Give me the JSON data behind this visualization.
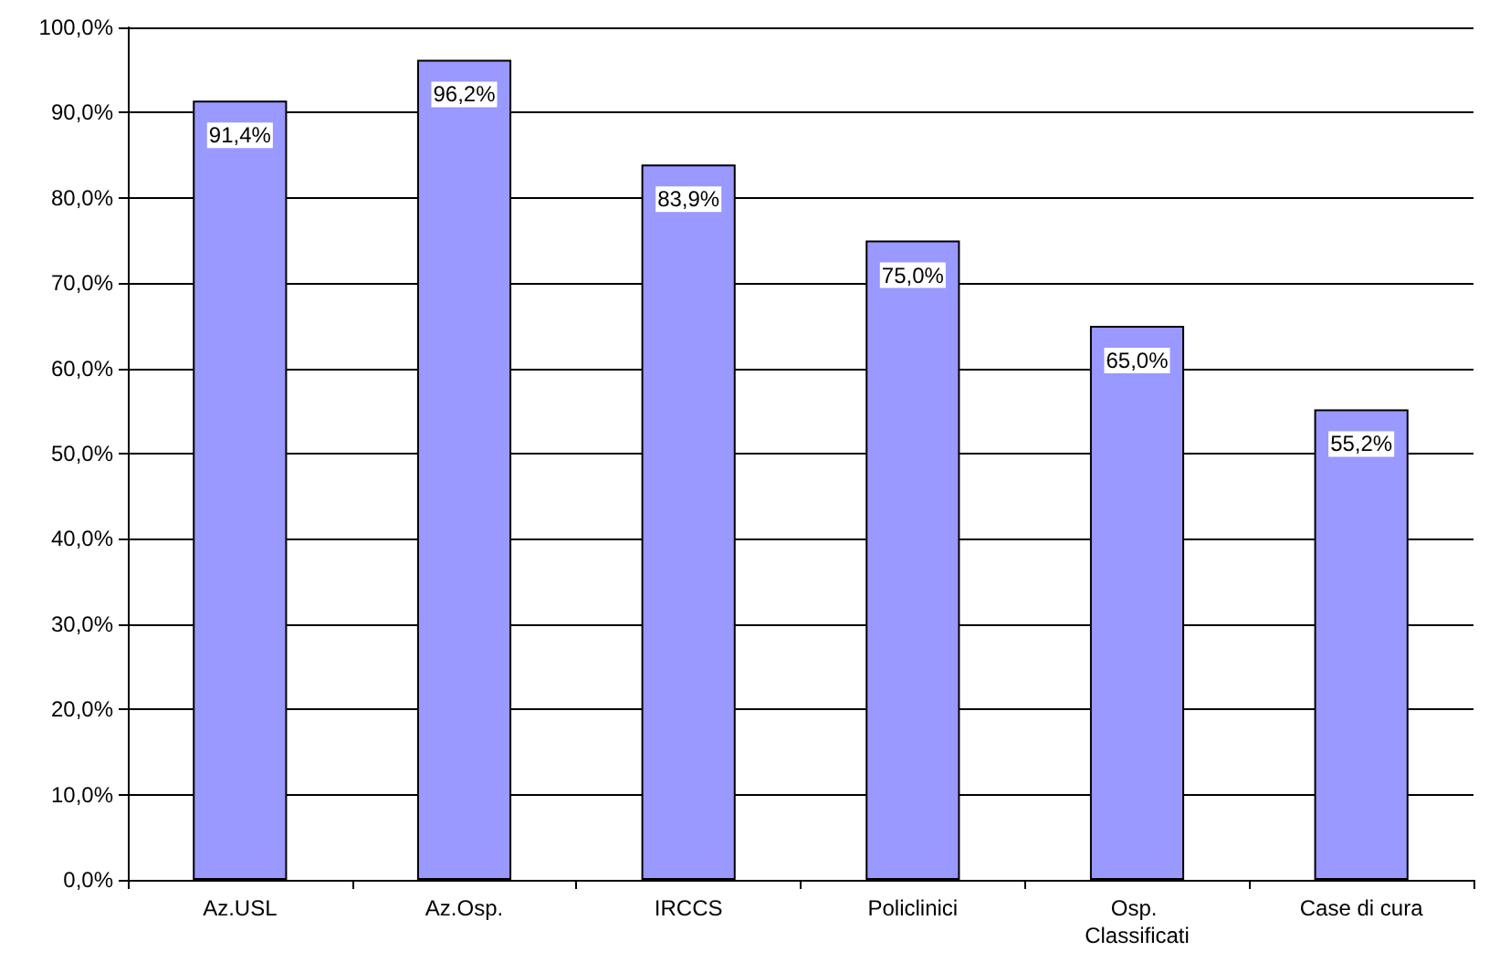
{
  "chart_data": {
    "type": "bar",
    "categories": [
      "Az.USL",
      "Az.Osp.",
      "IRCCS",
      "Policlinici",
      "Osp. Classificati",
      "Case di cura"
    ],
    "values": [
      91.4,
      96.2,
      83.9,
      75.0,
      65.0,
      55.2
    ],
    "value_labels": [
      "91,4%",
      "96,2%",
      "83,9%",
      "75,0%",
      "65,0%",
      "55,2%"
    ],
    "color": "#9999ff",
    "ylim": [
      0,
      100
    ],
    "yticks": [
      {
        "value": 0,
        "label": "0,0%"
      },
      {
        "value": 10,
        "label": "10,0%"
      },
      {
        "value": 20,
        "label": "20,0%"
      },
      {
        "value": 30,
        "label": "30,0%"
      },
      {
        "value": 40,
        "label": "40,0%"
      },
      {
        "value": 50,
        "label": "50,0%"
      },
      {
        "value": 60,
        "label": "60,0%"
      },
      {
        "value": 70,
        "label": "70,0%"
      },
      {
        "value": 80,
        "label": "80,0%"
      },
      {
        "value": 90,
        "label": "90,0%"
      },
      {
        "value": 100,
        "label": "100,0%"
      }
    ],
    "grid": "y"
  }
}
